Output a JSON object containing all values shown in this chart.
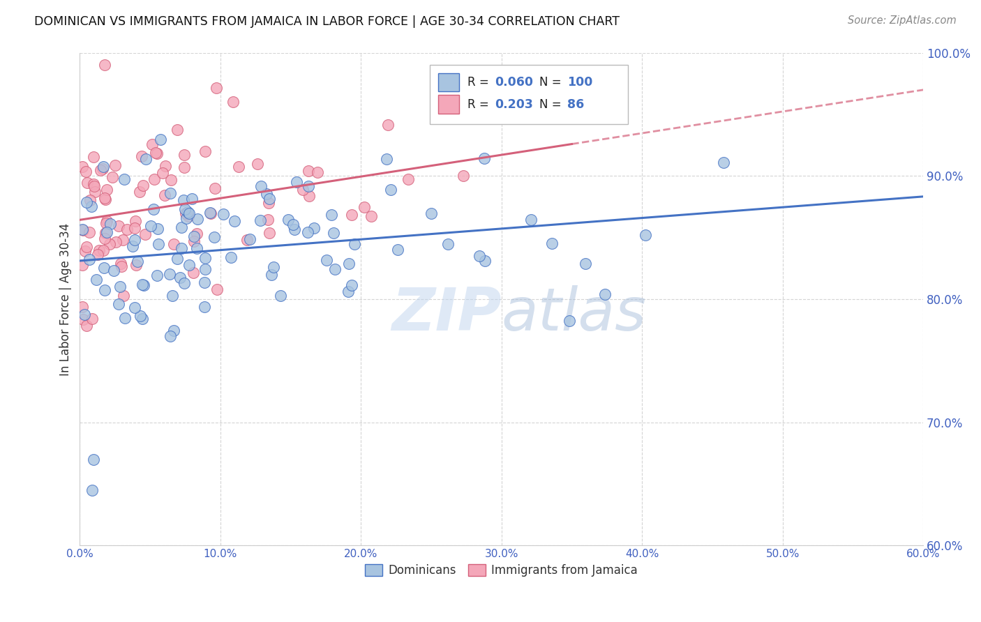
{
  "title": "DOMINICAN VS IMMIGRANTS FROM JAMAICA IN LABOR FORCE | AGE 30-34 CORRELATION CHART",
  "source": "Source: ZipAtlas.com",
  "ylabel": "In Labor Force | Age 30-34",
  "blue_label": "Dominicans",
  "pink_label": "Immigrants from Jamaica",
  "blue_R": 0.06,
  "blue_N": 100,
  "pink_R": 0.203,
  "pink_N": 86,
  "xlim": [
    0.0,
    0.6
  ],
  "ylim": [
    0.6,
    1.0
  ],
  "blue_color": "#a8c4e0",
  "pink_color": "#f4a7b9",
  "blue_line_color": "#4472c4",
  "pink_line_color": "#d4607a",
  "background_color": "#ffffff",
  "grid_color": "#d0d0d0",
  "watermark_color": "#c8d8f0",
  "tick_color": "#4060c0"
}
